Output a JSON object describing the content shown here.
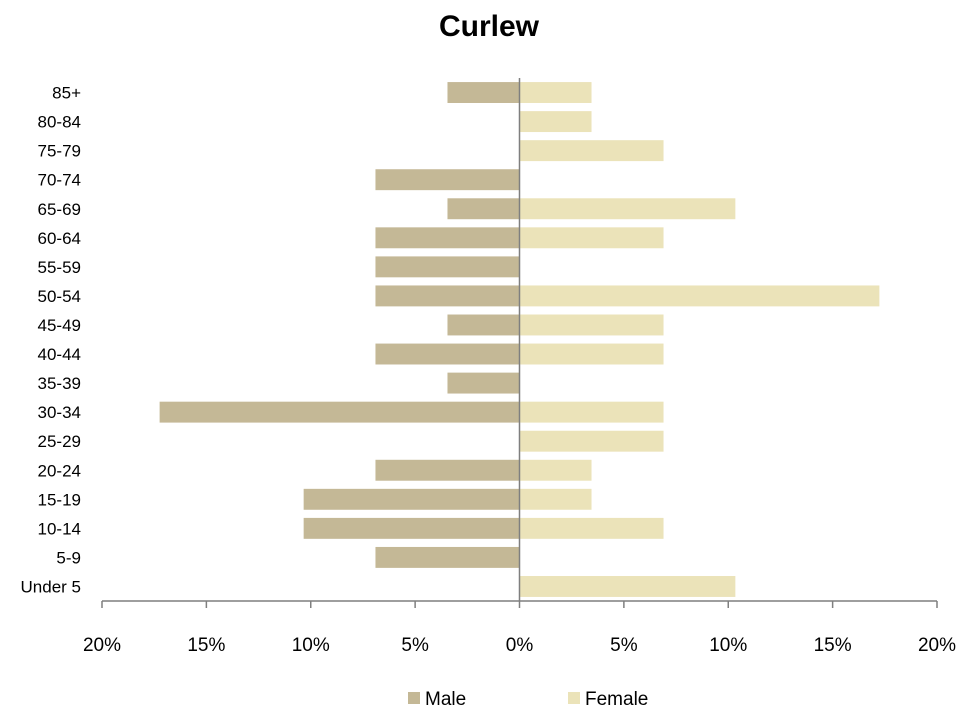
{
  "chart_data": {
    "type": "bar",
    "orientation": "horizontal",
    "title": "Curlew",
    "xlabel": "",
    "ylabel": "",
    "categories": [
      "85+",
      "80-84",
      "75-79",
      "70-74",
      "65-69",
      "60-64",
      "55-59",
      "50-54",
      "45-49",
      "40-44",
      "35-39",
      "30-34",
      "25-29",
      "20-24",
      "15-19",
      "10-14",
      "5-9",
      "Under 5"
    ],
    "series": [
      {
        "name": "Male",
        "color": "#c4b896",
        "values": [
          3.45,
          0,
          0,
          6.9,
          3.45,
          6.9,
          6.9,
          6.9,
          3.45,
          6.9,
          3.45,
          17.24,
          0,
          6.9,
          10.34,
          10.34,
          6.9,
          0
        ]
      },
      {
        "name": "Female",
        "color": "#ebe3b9",
        "values": [
          3.45,
          3.45,
          6.9,
          0,
          10.34,
          6.9,
          0,
          17.24,
          6.9,
          6.9,
          0,
          6.9,
          6.9,
          3.45,
          3.45,
          6.9,
          0,
          10.34
        ]
      }
    ],
    "xlim": [
      -20,
      20
    ],
    "x_ticks": [
      "20%",
      "15%",
      "10%",
      "5%",
      "0%",
      "5%",
      "10%",
      "15%",
      "20%"
    ],
    "x_tick_values": [
      -20,
      -15,
      -10,
      -5,
      0,
      5,
      10,
      15,
      20
    ],
    "grid": false,
    "legend_position": "bottom"
  }
}
